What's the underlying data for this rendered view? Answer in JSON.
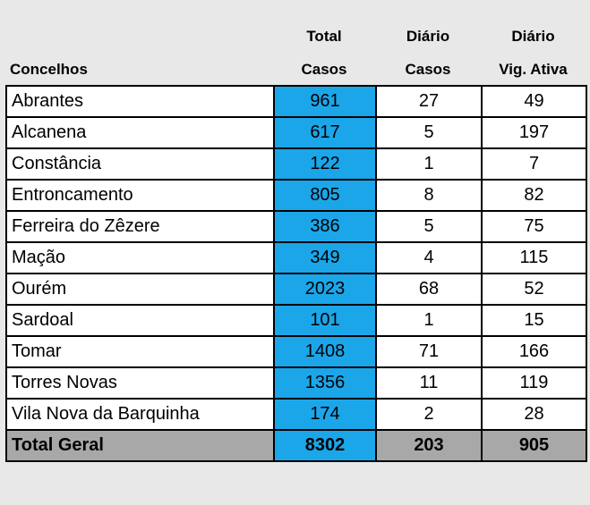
{
  "headers": {
    "concelhos": "Concelhos",
    "total_line1": "Total",
    "total_line2": "Casos",
    "diario_line1": "Diário",
    "diario_line2": "Casos",
    "vig_line1": "Diário",
    "vig_line2": "Vig. Ativa"
  },
  "rows": [
    {
      "name": "Abrantes",
      "total": "961",
      "diario": "27",
      "vig": "49"
    },
    {
      "name": "Alcanena",
      "total": "617",
      "diario": "5",
      "vig": "197"
    },
    {
      "name": "Constância",
      "total": "122",
      "diario": "1",
      "vig": "7"
    },
    {
      "name": "Entroncamento",
      "total": "805",
      "diario": "8",
      "vig": "82"
    },
    {
      "name": "Ferreira do Zêzere",
      "total": "386",
      "diario": "5",
      "vig": "75"
    },
    {
      "name": "Mação",
      "total": "349",
      "diario": "4",
      "vig": "115"
    },
    {
      "name": "Ourém",
      "total": "2023",
      "diario": "68",
      "vig": "52"
    },
    {
      "name": "Sardoal",
      "total": "101",
      "diario": "1",
      "vig": "15"
    },
    {
      "name": "Tomar",
      "total": "1408",
      "diario": "71",
      "vig": "166"
    },
    {
      "name": "Torres Novas",
      "total": "1356",
      "diario": "11",
      "vig": "119"
    },
    {
      "name": "Vila Nova da Barquinha",
      "total": "174",
      "diario": "2",
      "vig": "28"
    }
  ],
  "totals": {
    "name": "Total Geral",
    "total": "8302",
    "diario": "203",
    "vig": "905"
  },
  "colors": {
    "total_column": "#1ba6ea",
    "total_row": "#a8a8a8",
    "page_background": "#e8e8e8"
  }
}
